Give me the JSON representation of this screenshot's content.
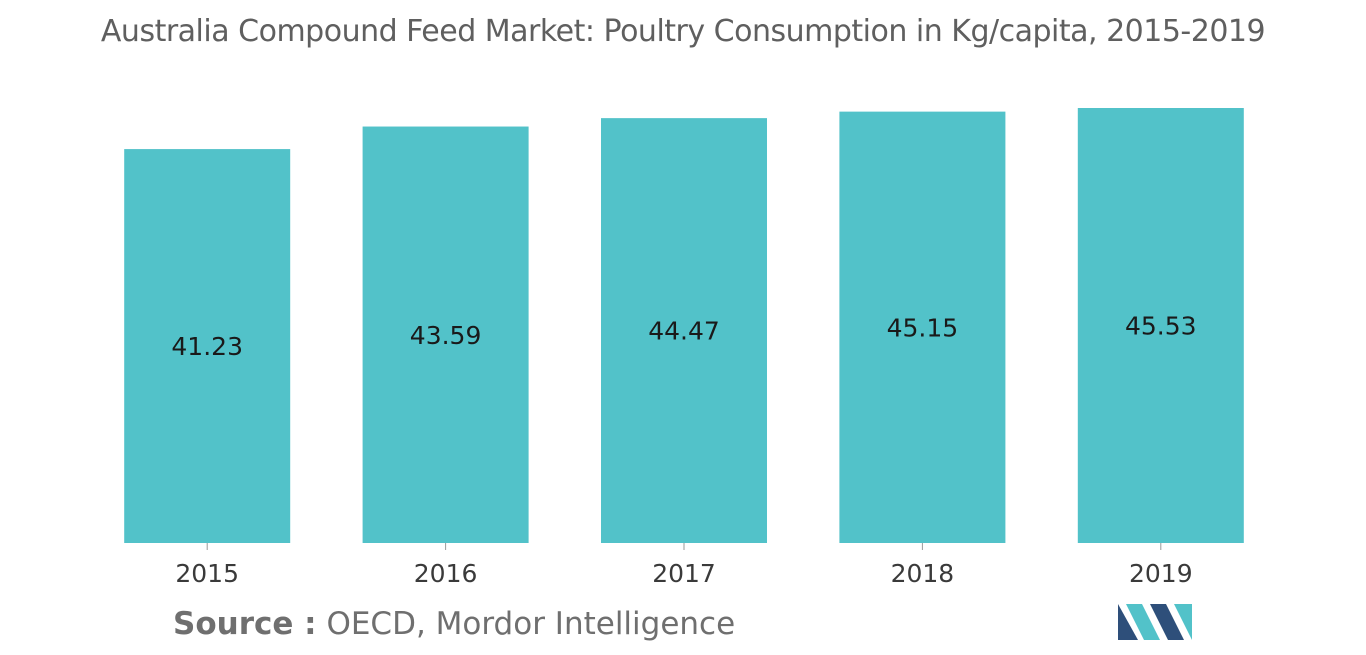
{
  "chart_data": {
    "type": "bar",
    "title": "Australia Compound Feed Market: Poultry Consumption in Kg/capita, 2015-2019",
    "categories": [
      "2015",
      "2016",
      "2017",
      "2018",
      "2019"
    ],
    "values": [
      41.23,
      43.59,
      44.47,
      45.15,
      45.53
    ],
    "value_labels": [
      "41.23",
      "43.59",
      "44.47",
      "45.15",
      "45.53"
    ],
    "xlabel": "",
    "ylabel": "",
    "ylim": [
      0,
      45.53
    ],
    "grid": false,
    "legend": "none",
    "bar_color": "#52c2c9"
  },
  "source": {
    "label": "Source :",
    "text": "OECD, Mordor Intelligence"
  },
  "logo": {
    "icon": "mordor-intelligence-logo-icon",
    "colors": [
      "#2e4f7a",
      "#52c2c9"
    ]
  }
}
